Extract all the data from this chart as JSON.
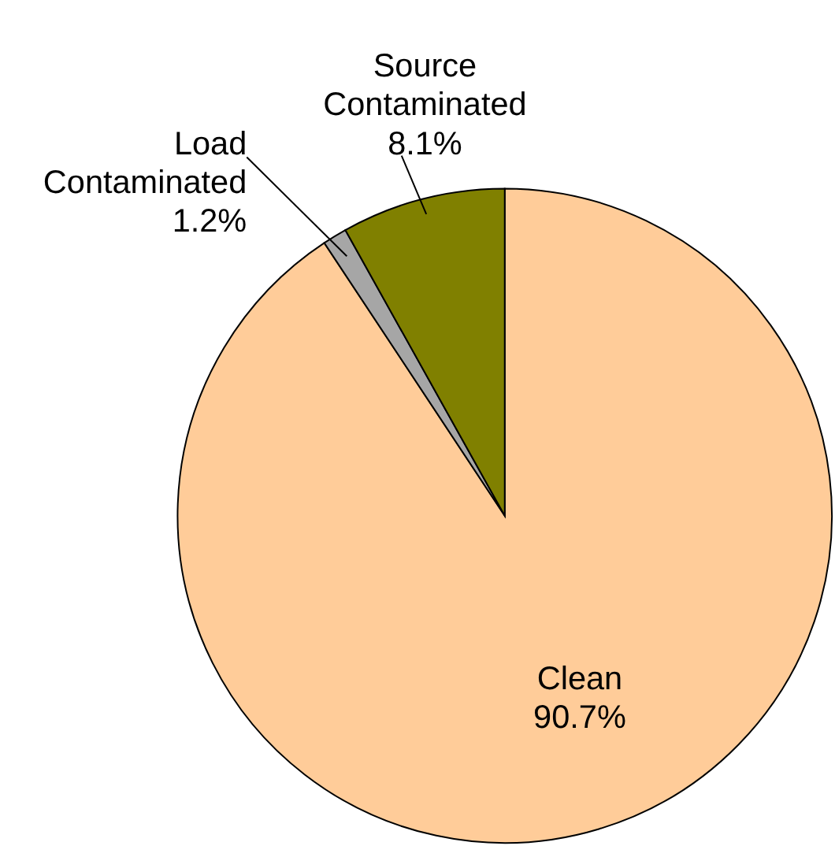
{
  "chart_data": {
    "type": "pie",
    "categories": [
      "Clean",
      "Load Contaminated",
      "Source Contaminated"
    ],
    "values": [
      90.7,
      1.2,
      8.1
    ],
    "colors": [
      "#ffcc99",
      "#a6a6a6",
      "#808000"
    ],
    "value_labels": [
      "90.7%",
      "1.2%",
      "8.1%"
    ],
    "legend": false
  }
}
